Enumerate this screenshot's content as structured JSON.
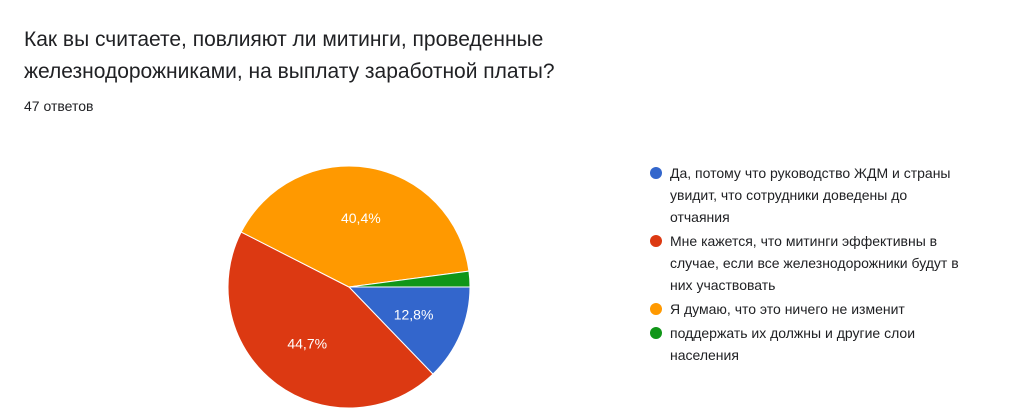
{
  "question": {
    "title": "Как вы считаете, повлияют ли митинги, проведенные железнодорожниками, на выплату заработной платы?",
    "responses": "47 ответов"
  },
  "chart_data": {
    "type": "pie",
    "slices": [
      {
        "label": "Да, потому что руководство ЖДМ и страны увидит, что сотрудники доведены до отчаяния",
        "value": 12.8,
        "display": "12,8%",
        "color": "#3366cc"
      },
      {
        "label": "Мне кажется, что митинги эффективны в случае, если все железнодорожники будут в них участвовать",
        "value": 44.7,
        "display": "44,7%",
        "color": "#dc3912"
      },
      {
        "label": "Я думаю, что это ничего не изменит",
        "value": 40.4,
        "display": "40,4%",
        "color": "#ff9900"
      },
      {
        "label": "поддержать их должны и другие слои населения",
        "value": 2.1,
        "display": "",
        "color": "#109618"
      }
    ],
    "legend_position": "right"
  }
}
